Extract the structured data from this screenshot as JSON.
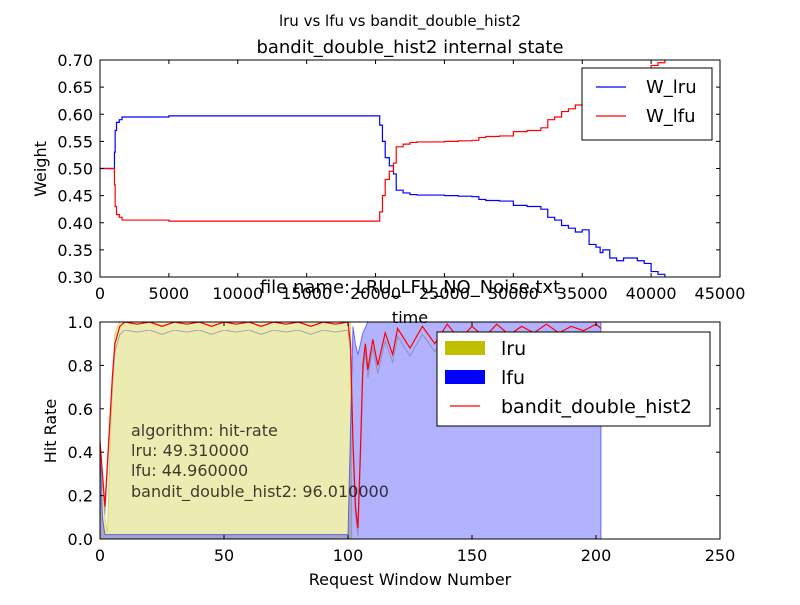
{
  "figure": {
    "suptitle": "lru vs lfu vs bandit_double_hist2"
  },
  "colors": {
    "w_lru": "#0000ff",
    "w_lfu": "#ff0000",
    "lru_fill": "#bfbf00",
    "lfu_fill": "#0000ff",
    "bandit_line": "#ff0000",
    "combined_fill": "#7a7a9a"
  },
  "chart_data": [
    {
      "type": "line",
      "title": "bandit_double_hist2 internal state",
      "xlabel": "time",
      "ylabel": "Weight",
      "xlim": [
        0,
        45000
      ],
      "ylim": [
        0.3,
        0.7
      ],
      "xticks": [
        0,
        5000,
        10000,
        15000,
        20000,
        25000,
        30000,
        35000,
        40000,
        45000
      ],
      "xticklabels": [
        "0",
        "5000",
        "10000",
        "15000",
        "20000",
        "25000",
        "30000",
        "35000",
        "40000",
        "45000"
      ],
      "yticks": [
        0.3,
        0.35,
        0.4,
        0.45,
        0.5,
        0.55,
        0.6,
        0.65,
        0.7
      ],
      "yticklabels": [
        "0.30",
        "0.35",
        "0.40",
        "0.45",
        "0.50",
        "0.55",
        "0.60",
        "0.65",
        "0.70"
      ],
      "legend_position": "top-right",
      "series": [
        {
          "name": "W_lru",
          "color_key": "w_lru",
          "x": [
            0,
            1000,
            1050,
            1100,
            1200,
            1400,
            1600,
            5000,
            10000,
            15000,
            19500,
            20000,
            20300,
            20500,
            20700,
            21000,
            21300,
            21500,
            22000,
            22500,
            23000,
            24000,
            25000,
            26000,
            27000,
            27500,
            28000,
            29000,
            30000,
            31000,
            32000,
            32500,
            33000,
            33500,
            34000,
            34500,
            35000,
            35500,
            36000,
            36300,
            36500,
            37000,
            37500,
            38000,
            39000,
            39500,
            40000,
            40500,
            41000
          ],
          "y": [
            0.5,
            0.5,
            0.53,
            0.57,
            0.585,
            0.59,
            0.595,
            0.597,
            0.597,
            0.597,
            0.597,
            0.597,
            0.58,
            0.55,
            0.52,
            0.505,
            0.49,
            0.46,
            0.455,
            0.452,
            0.451,
            0.451,
            0.45,
            0.449,
            0.448,
            0.443,
            0.441,
            0.44,
            0.432,
            0.43,
            0.425,
            0.41,
            0.405,
            0.395,
            0.39,
            0.383,
            0.387,
            0.36,
            0.355,
            0.345,
            0.35,
            0.335,
            0.33,
            0.335,
            0.33,
            0.325,
            0.31,
            0.305,
            0.3
          ]
        },
        {
          "name": "W_lfu",
          "color_key": "w_lfu",
          "x": [
            0,
            1000,
            1050,
            1100,
            1200,
            1400,
            1600,
            5000,
            10000,
            15000,
            19500,
            20000,
            20300,
            20500,
            20700,
            21000,
            21300,
            21500,
            22000,
            22500,
            23000,
            24000,
            25000,
            26000,
            27000,
            27500,
            28000,
            29000,
            30000,
            31000,
            32000,
            32500,
            33000,
            33500,
            34000,
            34500,
            35000,
            35500,
            36000,
            36300,
            36500,
            37000,
            37500,
            38000,
            39000,
            39500,
            40000,
            40500,
            41000
          ],
          "y": [
            0.5,
            0.5,
            0.47,
            0.43,
            0.415,
            0.41,
            0.405,
            0.403,
            0.403,
            0.403,
            0.403,
            0.403,
            0.42,
            0.45,
            0.48,
            0.495,
            0.51,
            0.54,
            0.545,
            0.548,
            0.549,
            0.549,
            0.55,
            0.551,
            0.552,
            0.557,
            0.559,
            0.56,
            0.568,
            0.57,
            0.575,
            0.59,
            0.595,
            0.605,
            0.61,
            0.617,
            0.613,
            0.64,
            0.645,
            0.655,
            0.65,
            0.665,
            0.67,
            0.665,
            0.67,
            0.675,
            0.69,
            0.695,
            0.7
          ]
        }
      ]
    },
    {
      "type": "area",
      "title": "file name: LRU_LFU_NO_Noise.txt",
      "xlabel": "Request Window Number",
      "ylabel": "Hit Rate",
      "xlim": [
        0,
        250
      ],
      "ylim": [
        0.0,
        1.0
      ],
      "xticks": [
        0,
        50,
        100,
        150,
        200,
        250
      ],
      "xticklabels": [
        "0",
        "50",
        "100",
        "150",
        "200",
        "250"
      ],
      "yticks": [
        0.0,
        0.2,
        0.4,
        0.6,
        0.8,
        1.0
      ],
      "yticklabels": [
        "0.0",
        "0.2",
        "0.4",
        "0.6",
        "0.8",
        "1.0"
      ],
      "legend_position": "top-right",
      "series": [
        {
          "name": "lru",
          "kind": "fill",
          "color_key": "lru_fill",
          "x": [
            0,
            1,
            2,
            3,
            4,
            5,
            6,
            8,
            10,
            20,
            40,
            60,
            80,
            100,
            101,
            101.5,
            102,
            150,
            202
          ],
          "y": [
            0.45,
            0.3,
            0.1,
            0.03,
            0.4,
            0.7,
            0.95,
            1.0,
            1.0,
            1.0,
            1.0,
            1.0,
            1.0,
            1.0,
            1.0,
            0.0,
            0.0,
            0.0,
            0.0
          ]
        },
        {
          "name": "lfu",
          "kind": "fill",
          "color_key": "lfu_fill",
          "x": [
            0,
            1,
            2,
            3,
            50,
            100,
            101,
            102,
            103,
            104,
            105,
            106,
            108,
            110,
            150,
            200,
            202
          ],
          "y": [
            0.45,
            0.1,
            0.02,
            0.02,
            0.02,
            0.02,
            0.5,
            0.98,
            0.9,
            0.85,
            0.9,
            0.95,
            1.0,
            1.0,
            1.0,
            1.0,
            1.0
          ]
        },
        {
          "name": "bandit_double_hist2",
          "kind": "line",
          "color_key": "bandit_line",
          "x": [
            0,
            1,
            2,
            3,
            4,
            5,
            6,
            8,
            10,
            15,
            20,
            25,
            30,
            35,
            40,
            45,
            50,
            55,
            60,
            65,
            70,
            75,
            80,
            85,
            90,
            95,
            100,
            101,
            102,
            103,
            104,
            105,
            106,
            107,
            108,
            110,
            112,
            115,
            118,
            120,
            125,
            130,
            135,
            140,
            145,
            150,
            155,
            160,
            165,
            170,
            175,
            180,
            185,
            190,
            195,
            200,
            202
          ],
          "y": [
            0.45,
            0.3,
            0.15,
            0.35,
            0.55,
            0.75,
            0.9,
            0.98,
            1.0,
            0.99,
            1.0,
            0.98,
            1.0,
            0.99,
            1.0,
            0.98,
            1.0,
            0.99,
            1.0,
            0.98,
            1.0,
            0.99,
            1.0,
            0.98,
            1.0,
            0.99,
            1.0,
            0.9,
            0.45,
            0.15,
            0.05,
            0.4,
            0.8,
            0.9,
            0.78,
            0.92,
            0.8,
            0.95,
            0.85,
            0.97,
            0.88,
            0.98,
            0.9,
            0.99,
            0.92,
            0.98,
            0.93,
            0.99,
            0.94,
            0.98,
            0.95,
            0.99,
            0.95,
            0.98,
            0.96,
            0.99,
            0.97
          ]
        }
      ],
      "annotation": {
        "lines": [
          "algorithm:  hit-rate",
          "lru:  49.310000",
          "lfu:  44.960000",
          "bandit_double_hist2:  96.010000"
        ]
      }
    }
  ]
}
